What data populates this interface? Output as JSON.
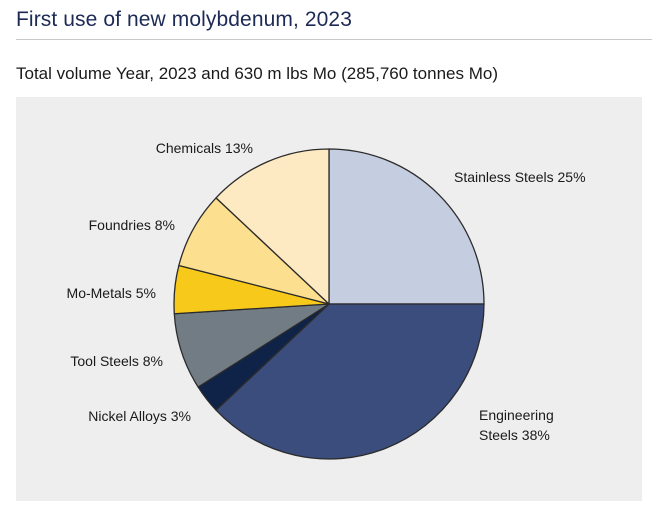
{
  "page": {
    "title": "First use of new molybdenum, 2023",
    "subtitle": "Total volume Year, 2023 and 630 m lbs Mo (285,760 tonnes Mo)"
  },
  "chart_data": {
    "type": "pie",
    "start": "12 o'clock",
    "direction": "clockwise",
    "slices": [
      {
        "name": "Stainless Steels",
        "value": 25,
        "label": [
          "Stainless Steels 25%"
        ],
        "color": "#c5cde0"
      },
      {
        "name": "Engineering Steels",
        "value": 38,
        "label": [
          "Engineering",
          "Steels 38%"
        ],
        "color": "#3b4d7c"
      },
      {
        "name": "Nickel Alloys",
        "value": 3,
        "label": [
          "Nickel Alloys 3%"
        ],
        "color": "#0f2248"
      },
      {
        "name": "Tool Steels",
        "value": 8,
        "label": [
          "Tool Steels 8%"
        ],
        "color": "#727c85"
      },
      {
        "name": "Mo-Metals",
        "value": 5,
        "label": [
          "Mo-Metals 5%"
        ],
        "color": "#f7c91a"
      },
      {
        "name": "Foundries",
        "value": 8,
        "label": [
          "Foundries 8%"
        ],
        "color": "#fde08f"
      },
      {
        "name": "Chemicals",
        "value": 13,
        "label": [
          "Chemicals 13%"
        ],
        "color": "#fdeac2"
      }
    ]
  }
}
